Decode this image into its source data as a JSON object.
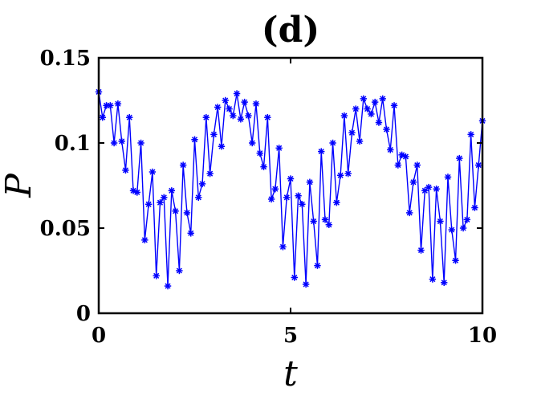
{
  "chart_data": {
    "type": "line",
    "title": "(d)",
    "xlabel": "t",
    "ylabel": "P",
    "xlim": [
      0,
      10
    ],
    "ylim": [
      0,
      0.15
    ],
    "xticks": [
      0,
      5,
      10
    ],
    "xtick_labels": [
      "0",
      "5",
      "10"
    ],
    "yticks": [
      0,
      0.05,
      0.1,
      0.15
    ],
    "ytick_labels": [
      "0",
      "0.05",
      "0.1",
      "0.15"
    ],
    "grid": false,
    "legend": "none",
    "series_color": "#0000ff",
    "marker": "asterisk",
    "series": [
      {
        "x": [
          0,
          0.1,
          0.2,
          0.3,
          0.4,
          0.5,
          0.6,
          0.7,
          0.8,
          0.9,
          1.0,
          1.1,
          1.2,
          1.3,
          1.4,
          1.5,
          1.6,
          1.7,
          1.8,
          1.9,
          2.0,
          2.1,
          2.2,
          2.3,
          2.4,
          2.5,
          2.6,
          2.7,
          2.8,
          2.9,
          3.0,
          3.1,
          3.2,
          3.3,
          3.4,
          3.5,
          3.6,
          3.7,
          3.8,
          3.9,
          4.0,
          4.1,
          4.2,
          4.3,
          4.4,
          4.5,
          4.6,
          4.7,
          4.8,
          4.9,
          5.0,
          5.1,
          5.2,
          5.3,
          5.4,
          5.5,
          5.6,
          5.7,
          5.8,
          5.9,
          6.0,
          6.1,
          6.2,
          6.3,
          6.4,
          6.5,
          6.6,
          6.7,
          6.8,
          6.9,
          7.0,
          7.1,
          7.2,
          7.3,
          7.4,
          7.5,
          7.6,
          7.7,
          7.8,
          7.9,
          8.0,
          8.1,
          8.2,
          8.3,
          8.4,
          8.5,
          8.6,
          8.7,
          8.8,
          8.9,
          9.0,
          9.1,
          9.2,
          9.3,
          9.4,
          9.5,
          9.6,
          9.7,
          9.8,
          9.9,
          10.0
        ],
        "values": [
          0.13,
          0.115,
          0.122,
          0.122,
          0.1,
          0.123,
          0.101,
          0.084,
          0.115,
          0.072,
          0.071,
          0.1,
          0.043,
          0.064,
          0.083,
          0.022,
          0.065,
          0.068,
          0.016,
          0.072,
          0.06,
          0.025,
          0.087,
          0.059,
          0.047,
          0.102,
          0.068,
          0.076,
          0.115,
          0.082,
          0.105,
          0.121,
          0.098,
          0.125,
          0.12,
          0.116,
          0.129,
          0.114,
          0.124,
          0.116,
          0.1,
          0.123,
          0.094,
          0.086,
          0.115,
          0.067,
          0.073,
          0.097,
          0.039,
          0.068,
          0.079,
          0.021,
          0.069,
          0.064,
          0.017,
          0.077,
          0.054,
          0.028,
          0.095,
          0.055,
          0.052,
          0.1,
          0.065,
          0.081,
          0.116,
          0.082,
          0.106,
          0.12,
          0.101,
          0.126,
          0.12,
          0.117,
          0.124,
          0.112,
          0.126,
          0.108,
          0.096,
          0.122,
          0.087,
          0.093,
          0.092,
          0.059,
          0.077,
          0.087,
          0.037,
          0.072,
          0.074,
          0.02,
          0.073,
          0.054,
          0.018,
          0.08,
          0.049,
          0.031,
          0.091,
          0.05,
          0.055,
          0.105,
          0.062,
          0.087,
          0.113
        ]
      }
    ]
  }
}
